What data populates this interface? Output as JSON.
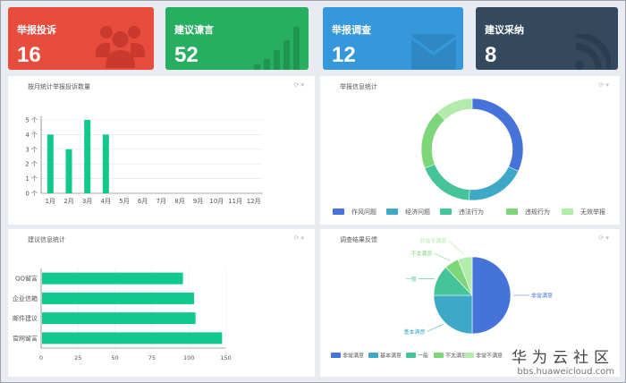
{
  "cards": [
    {
      "title": "举报投诉",
      "value": "16",
      "color": "#e74c3c",
      "icon": "users-icon"
    },
    {
      "title": "建议谏言",
      "value": "52",
      "color": "#27ae60",
      "icon": "bar-signal-icon"
    },
    {
      "title": "举报调查",
      "value": "12",
      "color": "#3498db",
      "icon": "envelope-icon"
    },
    {
      "title": "建议采纳",
      "value": "8",
      "color": "#34495e",
      "icon": "rss-icon"
    }
  ],
  "chart_data": [
    {
      "type": "bar",
      "title": "按月统计举报投诉数量",
      "categories": [
        "1月",
        "2月",
        "3月",
        "4月",
        "5月",
        "6月",
        "7月",
        "8月",
        "9月",
        "10月",
        "11月",
        "12月"
      ],
      "values": [
        4,
        3,
        5,
        4,
        0,
        0,
        0,
        0,
        0,
        0,
        0,
        0
      ],
      "yticks": [
        "0 个",
        "1 个",
        "2 个",
        "3 个",
        "4 个",
        "5 个"
      ],
      "ylim": [
        0,
        5
      ],
      "color": "#11c98c"
    },
    {
      "type": "pie",
      "title": "举报信息统计",
      "donut": true,
      "categories": [
        "作风问题",
        "经济问题",
        "违法行为",
        "违规行为",
        "无效举报"
      ],
      "values": [
        32,
        19,
        18,
        19,
        12
      ],
      "colors": [
        "#4673d9",
        "#3ea9c6",
        "#45c49a",
        "#7dd67a",
        "#b3ecaa"
      ],
      "legend": "bottom"
    },
    {
      "type": "bar",
      "orientation": "horizontal",
      "title": "建议信息统计",
      "categories": [
        "QQ留言",
        "企业信箱",
        "邮件建议",
        "官网留言"
      ],
      "values": [
        96,
        107,
        109,
        145
      ],
      "xticks": [
        "0",
        "25",
        "50",
        "75",
        "100",
        "150"
      ],
      "color": "#11c98c"
    },
    {
      "type": "pie",
      "title": "调查结果反馈",
      "categories": [
        "非常满意",
        "基本满意",
        "一般",
        "不太满意",
        "非常不满意"
      ],
      "values": [
        50,
        25,
        13,
        6,
        6
      ],
      "colors": [
        "#4673d9",
        "#3ea9c6",
        "#45c49a",
        "#7dd67a",
        "#b3ecaa"
      ],
      "legend": "bottom"
    }
  ],
  "watermark": {
    "name": "华为云社区",
    "url": "bbs.huaweicloud.com"
  }
}
